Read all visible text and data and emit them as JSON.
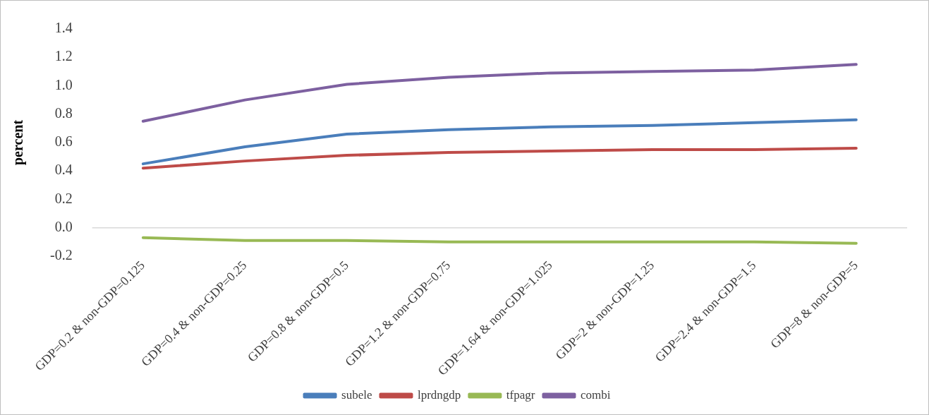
{
  "chart_data": {
    "type": "line",
    "ylabel": "percent",
    "categories": [
      "GDP=0.2 & non-GDP=0.125",
      "GDP=0.4 & non-GDP=0.25",
      "GDP=0.8 & non-GDP=0.5",
      "GDP=1.2 & non-GDP=0.75",
      "GDP=1.64 & non-GDP=1.025",
      "GDP=2 & non-GDP=1.25",
      "GDP=2.4 & non-GDP=1.5",
      "GDP=8 & non-GDP=5"
    ],
    "series": [
      {
        "name": "subele",
        "color": "#4a7ebb",
        "values": [
          0.45,
          0.57,
          0.66,
          0.69,
          0.71,
          0.72,
          0.74,
          0.76
        ]
      },
      {
        "name": "lprdngdp",
        "color": "#be4b48",
        "values": [
          0.42,
          0.47,
          0.51,
          0.53,
          0.54,
          0.55,
          0.55,
          0.56
        ]
      },
      {
        "name": "tfpagr",
        "color": "#98b954",
        "values": [
          -0.07,
          -0.09,
          -0.09,
          -0.1,
          -0.1,
          -0.1,
          -0.1,
          -0.11
        ]
      },
      {
        "name": "combi",
        "color": "#7d60a0",
        "values": [
          0.75,
          0.9,
          1.01,
          1.06,
          1.09,
          1.1,
          1.11,
          1.15
        ]
      }
    ],
    "ylim": [
      -0.2,
      1.4
    ],
    "yticks": [
      {
        "value": -0.2,
        "label": "-0.2"
      },
      {
        "value": 0,
        "label": "0.0"
      },
      {
        "value": 0.2,
        "label": "0.2"
      },
      {
        "value": 0.4,
        "label": "0.4"
      },
      {
        "value": 0.6,
        "label": "0.6"
      },
      {
        "value": 0.8,
        "label": "0.8"
      },
      {
        "value": 1,
        "label": "1.0"
      },
      {
        "value": 1.2,
        "label": "1.2"
      },
      {
        "value": 1.4,
        "label": "1.4"
      }
    ],
    "legend": "bottom",
    "marker": "none"
  }
}
